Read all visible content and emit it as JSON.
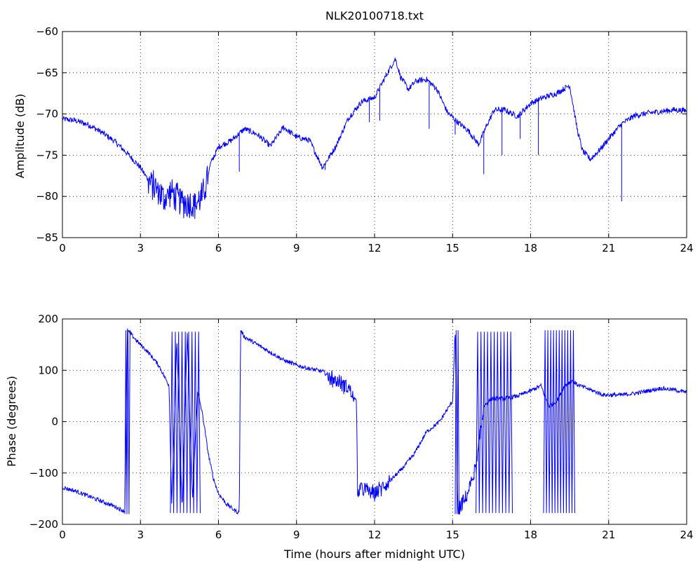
{
  "chart_data": [
    {
      "type": "line",
      "title": "NLK20100718.txt",
      "xlabel": "",
      "ylabel": "Amplitude (dB)",
      "xlim": [
        0,
        24
      ],
      "ylim": [
        -85,
        -60
      ],
      "xticks": [
        "0",
        "3",
        "6",
        "9",
        "12",
        "15",
        "18",
        "21",
        "24"
      ],
      "yticks": [
        "-85",
        "-80",
        "-75",
        "-70",
        "-65",
        "-60"
      ],
      "grid": true,
      "color": "#0000ff",
      "x": [
        0,
        0.5,
        1,
        1.5,
        2,
        2.5,
        3,
        3.3,
        3.6,
        3.9,
        4.2,
        4.5,
        4.8,
        5.1,
        5.4,
        5.7,
        6,
        6.5,
        7,
        7.5,
        8,
        8.5,
        9,
        9.5,
        10,
        10.5,
        11,
        11.5,
        12,
        12.5,
        12.8,
        13,
        13.3,
        13.6,
        14,
        14.4,
        14.8,
        15.2,
        15.6,
        16,
        16.3,
        16.6,
        17,
        17.5,
        18,
        18.5,
        19,
        19.5,
        19.8,
        20,
        20.3,
        20.7,
        21,
        21.5,
        22,
        22.5,
        23,
        23.5,
        24
      ],
      "y": [
        -70.6,
        -70.8,
        -71.3,
        -72.2,
        -73.3,
        -74.8,
        -76.5,
        -78.0,
        -79.2,
        -80.2,
        -79.5,
        -80.5,
        -80.8,
        -81.0,
        -80.0,
        -76.0,
        -74.0,
        -73.2,
        -71.8,
        -72.5,
        -73.9,
        -71.6,
        -72.8,
        -73.2,
        -76.5,
        -74.0,
        -70.5,
        -68.5,
        -68.0,
        -65.0,
        -63.3,
        -65.5,
        -67.0,
        -66.0,
        -65.8,
        -67.0,
        -69.8,
        -71.0,
        -72.0,
        -73.7,
        -71.5,
        -69.5,
        -69.5,
        -70.3,
        -68.7,
        -68.0,
        -67.5,
        -66.5,
        -72.0,
        -74.5,
        -75.5,
        -74.2,
        -73.0,
        -71.2,
        -70.2,
        -69.9,
        -69.7,
        -69.5,
        -69.6
      ],
      "spikes": [
        {
          "x": 6.8,
          "y": -77.0
        },
        {
          "x": 10.1,
          "y": -76.8
        },
        {
          "x": 11.8,
          "y": -71.0
        },
        {
          "x": 12.2,
          "y": -70.8
        },
        {
          "x": 14.1,
          "y": -71.8
        },
        {
          "x": 15.1,
          "y": -72.5
        },
        {
          "x": 16.2,
          "y": -77.3
        },
        {
          "x": 16.9,
          "y": -75.0
        },
        {
          "x": 17.6,
          "y": -73.0
        },
        {
          "x": 18.3,
          "y": -75.0
        },
        {
          "x": 21.5,
          "y": -80.6
        }
      ]
    },
    {
      "type": "line",
      "title": "",
      "xlabel": "Time (hours after midnight UTC)",
      "ylabel": "Phase (degrees)",
      "xlim": [
        0,
        24
      ],
      "ylim": [
        -200,
        200
      ],
      "xticks": [
        "0",
        "3",
        "6",
        "9",
        "12",
        "15",
        "18",
        "21",
        "24"
      ],
      "yticks": [
        "-200",
        "-100",
        "0",
        "100",
        "200"
      ],
      "grid": true,
      "color": "#0000ff",
      "x": [
        0,
        0.5,
        1,
        1.5,
        2,
        2.4,
        2.5,
        2.9,
        3.3,
        3.7,
        4.1,
        4.2,
        4.4,
        4.6,
        4.8,
        5.0,
        5.2,
        5.4,
        5.6,
        5.8,
        6.0,
        6.3,
        6.6,
        6.8,
        6.85,
        7.0,
        7.5,
        8,
        8.5,
        9,
        9.5,
        10,
        10.5,
        11,
        11.3,
        11.35,
        11.5,
        12,
        12.5,
        13,
        13.5,
        14,
        14.5,
        15,
        15.1,
        15.2,
        15.5,
        15.9,
        16.2,
        16.5,
        17,
        17.5,
        18,
        18.4,
        18.7,
        19.0,
        19.3,
        19.6,
        19.8,
        20.3,
        20.8,
        21.5,
        22,
        22.5,
        23,
        23.5,
        24
      ],
      "y": [
        -128,
        -135,
        -145,
        -155,
        -165,
        -175,
        178,
        155,
        135,
        110,
        70,
        -160,
        160,
        -170,
        170,
        -150,
        60,
        10,
        -60,
        -110,
        -140,
        -160,
        -172,
        -178,
        178,
        165,
        150,
        135,
        120,
        110,
        103,
        98,
        80,
        65,
        40,
        -135,
        -130,
        -140,
        -120,
        -95,
        -65,
        -20,
        0,
        40,
        178,
        -175,
        -150,
        -90,
        30,
        45,
        45,
        50,
        60,
        70,
        30,
        40,
        70,
        80,
        72,
        62,
        52,
        52,
        55,
        60,
        65,
        62,
        57
      ],
      "oscillations": [
        {
          "x_start": 2.4,
          "x_end": 2.6,
          "count": 5,
          "low": -180,
          "high": 178
        },
        {
          "x_start": 4.15,
          "x_end": 5.3,
          "count": 18,
          "low": -178,
          "high": 175
        },
        {
          "x_start": 15.1,
          "x_end": 15.25,
          "count": 4,
          "low": -180,
          "high": 178
        },
        {
          "x_start": 15.9,
          "x_end": 17.3,
          "count": 22,
          "low": -178,
          "high": 175
        },
        {
          "x_start": 18.5,
          "x_end": 19.7,
          "count": 22,
          "low": -178,
          "high": 178
        }
      ]
    }
  ]
}
